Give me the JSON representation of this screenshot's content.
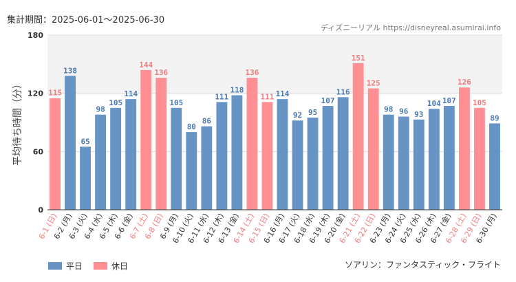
{
  "period_text": "集計期間：2025-06-01～2025-06-30",
  "source_text": "ディズニーリアル https://disneyreal.asumirai.info",
  "attraction_text": "ソアリン：ファンタスティック・フライト",
  "colors": {
    "weekday": "#6594c5",
    "holiday": "#ff8f92",
    "holiday_text": "#f07a7e",
    "weekday_text": "#333333",
    "value_weekday": "#4a78b0"
  },
  "chart_data": {
    "type": "bar",
    "ylabel": "平均待ち時間（分）",
    "ylim": [
      0,
      180
    ],
    "yticks": [
      0,
      60,
      120,
      180
    ],
    "grid": true,
    "legend_position": "bottom-left",
    "legend": [
      {
        "key": "weekday",
        "label": "平日"
      },
      {
        "key": "holiday",
        "label": "休日"
      }
    ],
    "categories": [
      "6-1 (日)",
      "6-2 (月)",
      "6-3 (火)",
      "6-4 (水)",
      "6-5 (木)",
      "6-6 (金)",
      "6-7 (土)",
      "6-8 (日)",
      "6-9 (月)",
      "6-10 (火)",
      "6-11 (水)",
      "6-12 (木)",
      "6-13 (金)",
      "6-14 (土)",
      "6-15 (日)",
      "6-16 (月)",
      "6-17 (火)",
      "6-18 (水)",
      "6-19 (木)",
      "6-20 (金)",
      "6-21 (土)",
      "6-22 (日)",
      "6-23 (月)",
      "6-24 (火)",
      "6-25 (水)",
      "6-26 (木)",
      "6-27 (金)",
      "6-28 (土)",
      "6-29 (日)",
      "6-30 (月)"
    ],
    "values": [
      115,
      138,
      65,
      98,
      105,
      114,
      144,
      136,
      105,
      80,
      86,
      111,
      118,
      136,
      111,
      114,
      92,
      95,
      107,
      116,
      151,
      125,
      98,
      96,
      93,
      104,
      107,
      126,
      105,
      89
    ],
    "day_type": [
      "holiday",
      "weekday",
      "weekday",
      "weekday",
      "weekday",
      "weekday",
      "holiday",
      "holiday",
      "weekday",
      "weekday",
      "weekday",
      "weekday",
      "weekday",
      "holiday",
      "holiday",
      "weekday",
      "weekday",
      "weekday",
      "weekday",
      "weekday",
      "holiday",
      "holiday",
      "weekday",
      "weekday",
      "weekday",
      "weekday",
      "weekday",
      "holiday",
      "holiday",
      "weekday"
    ]
  }
}
